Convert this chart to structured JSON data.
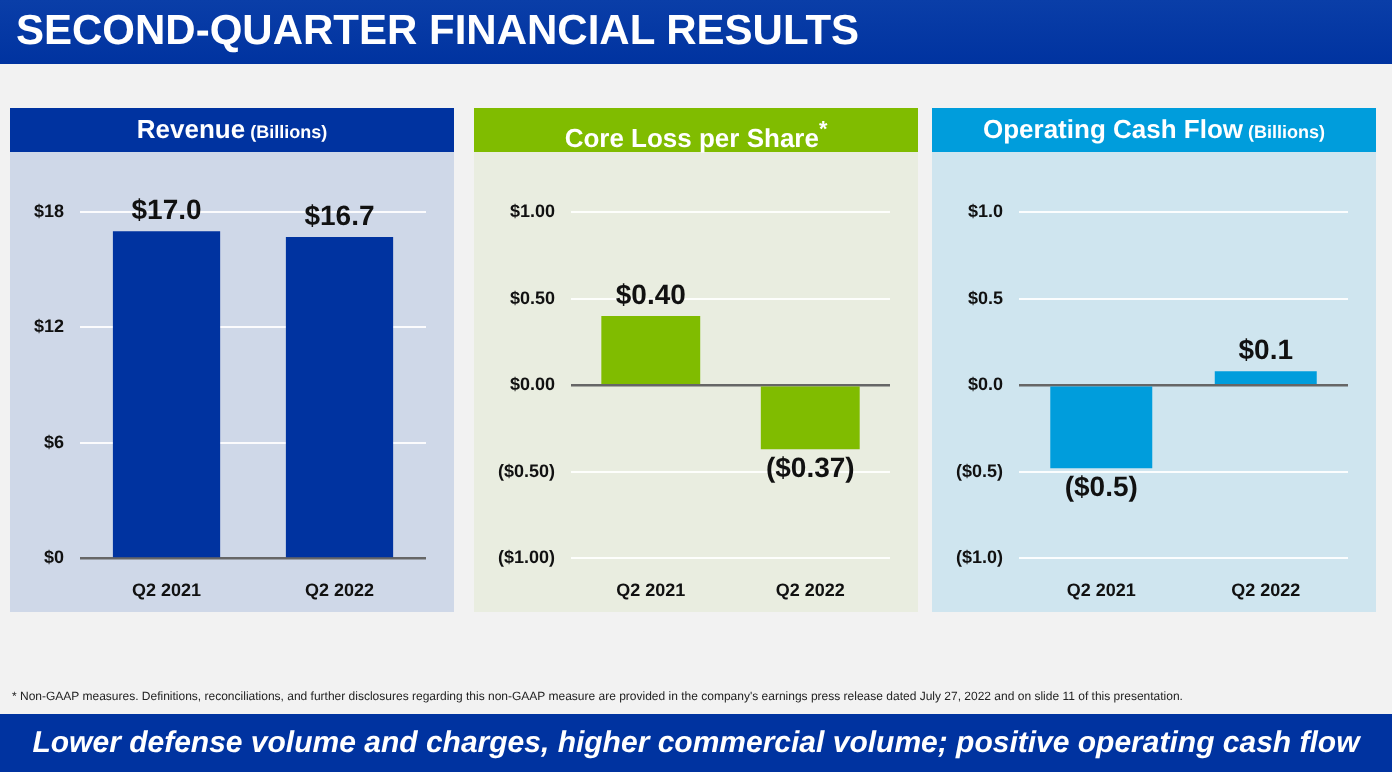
{
  "chart_data": [
    {
      "type": "bar",
      "title": "Revenue (Billions)",
      "categories": [
        "Q2 2021",
        "Q2 2022"
      ],
      "values": [
        17.0,
        16.7
      ],
      "color": "#0033a0",
      "value_labels": [
        "$17.0",
        "$16.7"
      ],
      "ylim": [
        0,
        18
      ],
      "yticks": [
        {
          "value": 0,
          "label": "$0"
        },
        {
          "value": 6,
          "label": "$6"
        },
        {
          "value": 12,
          "label": "$12"
        },
        {
          "value": 18,
          "label": "$18"
        }
      ],
      "grid": "y",
      "legend": false
    },
    {
      "type": "bar",
      "title": "Core Loss per Share$^{*}$",
      "categories": [
        "Q2 2021",
        "Q2 2022"
      ],
      "values": [
        0.4,
        -0.37
      ],
      "color": "#80bc00",
      "value_labels": [
        "$0.40",
        "($0.37)"
      ],
      "ylim": [
        -1.0,
        1.0
      ],
      "yticks": [
        {
          "value": -1.0,
          "label": "($1.00)"
        },
        {
          "value": -0.5,
          "label": "($0.50)"
        },
        {
          "value": 0,
          "label": "$0.00"
        },
        {
          "value": 0.5,
          "label": "$0.50"
        },
        {
          "value": 1.0,
          "label": "$1.00"
        }
      ],
      "grid": "y",
      "legend": false
    },
    {
      "type": "bar",
      "title": "Operating Cash Flow (Billions)",
      "categories": [
        "Q2 2021",
        "Q2 2022"
      ],
      "values": [
        -0.48,
        0.08
      ],
      "color": "#009ddc",
      "value_labels": [
        "($0.5)",
        "$0.1"
      ],
      "ylim": [
        -1.0,
        1.0
      ],
      "yticks": [
        {
          "value": -1.0,
          "label": "($1.0)"
        },
        {
          "value": -0.5,
          "label": "($0.5)"
        },
        {
          "value": 0,
          "label": "$0.0"
        },
        {
          "value": 0.5,
          "label": "$0.5"
        },
        {
          "value": 1.0,
          "label": "$1.0"
        }
      ],
      "grid": "y",
      "legend": false
    },
    {
      "type": "other",
      "title": "SECOND-QUARTER FINANCIAL RESULTS",
      "annotations": [
        "* Non-GAAP measures. Definitions, reconciliations, and further disclosures regarding this non-GAAP measure are provided in the company's earnings press release dated July 27, 2022 and on slide 11 of this presentation.",
        "Lower defense volume and charges, higher commercial volume; positive operating cash flow"
      ]
    }
  ]
}
